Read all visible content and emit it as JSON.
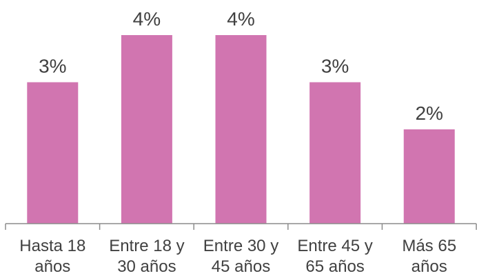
{
  "chart_data": {
    "type": "bar",
    "categories": [
      [
        "Hasta 18",
        "años"
      ],
      [
        "Entre 18 y",
        "30 años"
      ],
      [
        "Entre 30 y",
        "45 años"
      ],
      [
        "Entre 45 y",
        "65 años"
      ],
      [
        "Más 65",
        "años"
      ]
    ],
    "values": [
      3,
      4,
      4,
      3,
      2
    ],
    "data_labels": [
      "3%",
      "4%",
      "4%",
      "3%",
      "2%"
    ],
    "title": "",
    "xlabel": "",
    "ylabel": "",
    "ylim": [
      0,
      4
    ],
    "grid": false,
    "legend": "none",
    "colors": {
      "bar": "#d175b0",
      "axis": "#8c8c8c",
      "text": "#404040"
    }
  }
}
